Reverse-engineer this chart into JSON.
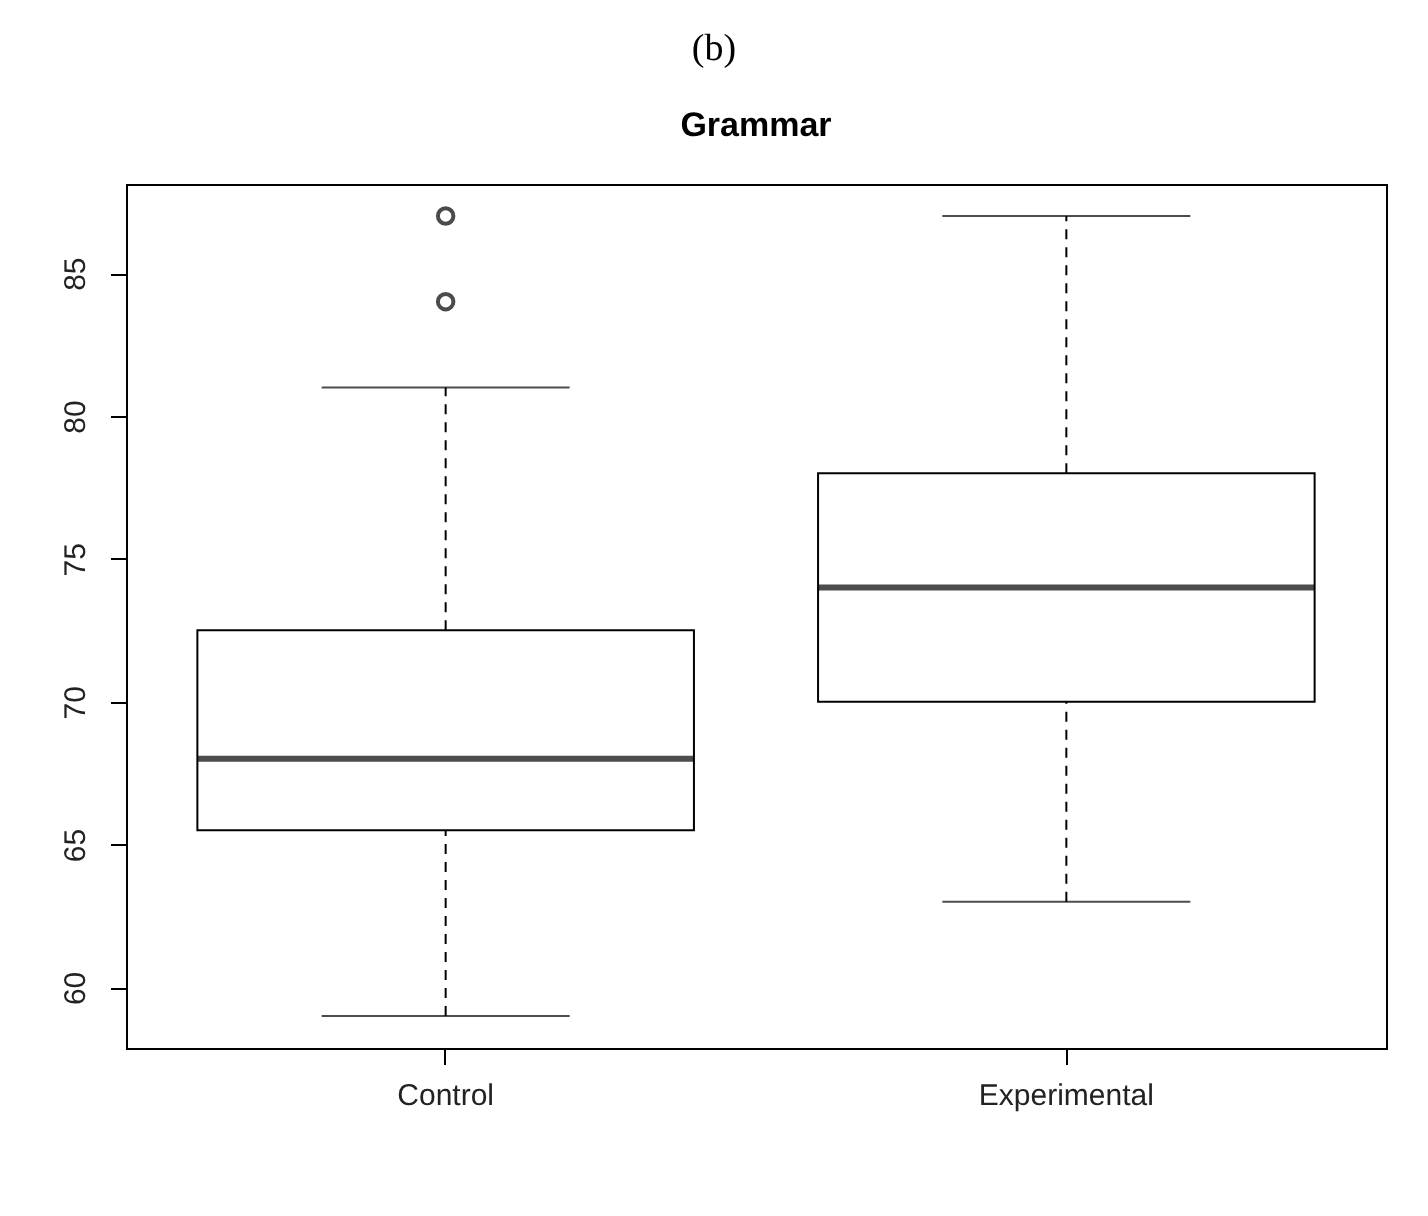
{
  "chart_data": {
    "type": "box",
    "title": "Grammar",
    "annotations": [
      "(b)"
    ],
    "categories": [
      "Control",
      "Experimental"
    ],
    "boxes": [
      {
        "low": 59,
        "q1": 65.5,
        "median": 68,
        "q3": 72.5,
        "high": 81,
        "outliers": [
          84,
          87
        ]
      },
      {
        "low": 63,
        "q1": 70,
        "median": 74,
        "q3": 78,
        "high": 87
      }
    ],
    "ylim": [
      57.88,
      88.12
    ],
    "yticks": [
      60,
      65,
      70,
      75,
      80,
      85
    ],
    "grid": false
  }
}
